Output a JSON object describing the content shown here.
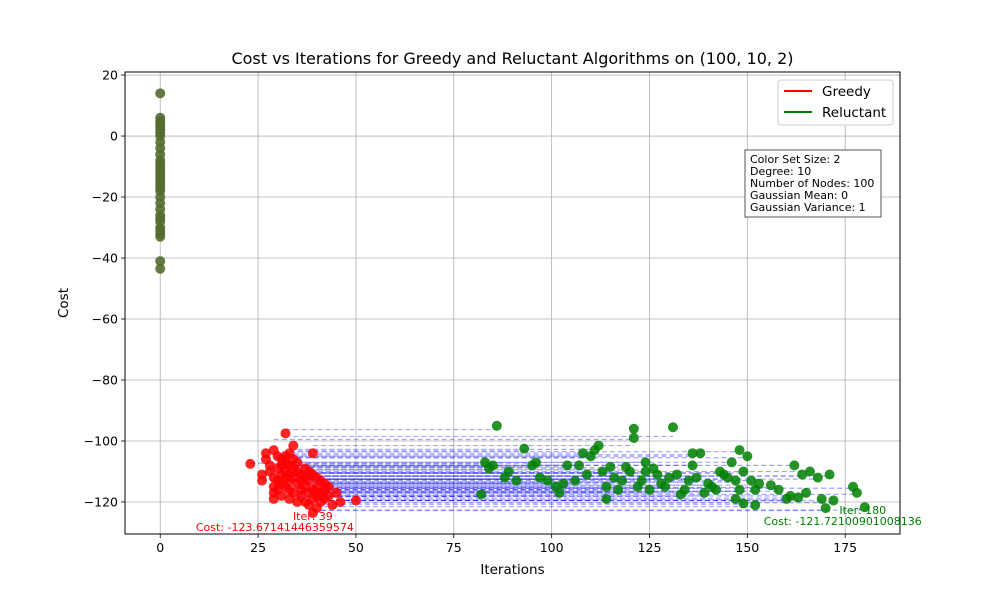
{
  "chart_data": {
    "type": "scatter",
    "title": "Cost vs Iterations for Greedy and Reluctant Algorithms on (100, 10, 2)",
    "xlabel": "Iterations",
    "ylabel": "Cost",
    "xlim": [
      -9,
      189
    ],
    "ylim": [
      -130.5,
      21
    ],
    "xticks": [
      0,
      25,
      50,
      75,
      100,
      125,
      150,
      175
    ],
    "yticks": [
      20,
      0,
      -20,
      -40,
      -60,
      -80,
      -100,
      -120
    ],
    "xtick_labels": [
      "0",
      "25",
      "50",
      "75",
      "100",
      "125",
      "150",
      "175"
    ],
    "ytick_labels": [
      "20",
      "0",
      "−20",
      "−40",
      "−60",
      "−80",
      "−100",
      "−120"
    ],
    "grid": true,
    "legend_position": "top-right",
    "legend": [
      {
        "name": "Greedy",
        "color": "#ff0000"
      },
      {
        "name": "Reluctant",
        "color": "#008000"
      }
    ],
    "colors": {
      "greedy": "#ff0000",
      "reluctant": "#008000",
      "initial": "#556b2f",
      "path": "#0000ff"
    },
    "info_box": [
      "Color Set Size: 2",
      "Degree: 10",
      "Number of Nodes: 100",
      "Gaussian Mean: 0",
      "Gaussian Variance: 1"
    ],
    "annotations": [
      {
        "line1": "Iter: 39",
        "line2": "Cost: -123.67141446359574",
        "x": 39,
        "y": -123.67,
        "color": "#ff0000"
      },
      {
        "line1": "Iter: 180",
        "line2": "Cost: -121.72100901008136",
        "x": 180,
        "y": -121.72,
        "color": "#008000"
      }
    ],
    "initial_points": {
      "x": 0,
      "y": [
        14,
        6,
        5,
        4,
        3,
        2,
        1,
        0,
        -2,
        -4,
        -6,
        -8,
        -9,
        -10,
        -11,
        -12,
        -13,
        -14,
        -15,
        -16,
        -17,
        -18,
        -20,
        -22,
        -24,
        -26,
        -27,
        -28,
        -30,
        -31,
        -32,
        -33,
        -41,
        -43.5
      ]
    },
    "greedy_points": [
      [
        23,
        -107.5
      ],
      [
        26,
        -111
      ],
      [
        26,
        -113
      ],
      [
        27,
        -104
      ],
      [
        27,
        -106
      ],
      [
        28,
        -108
      ],
      [
        28,
        -110
      ],
      [
        29,
        -103
      ],
      [
        29,
        -112
      ],
      [
        29,
        -115
      ],
      [
        29,
        -117
      ],
      [
        29,
        -119
      ],
      [
        30,
        -105
      ],
      [
        30,
        -109
      ],
      [
        30,
        -113
      ],
      [
        30,
        -116
      ],
      [
        31,
        -106
      ],
      [
        31,
        -108
      ],
      [
        31,
        -111
      ],
      [
        31,
        -114
      ],
      [
        31,
        -118
      ],
      [
        32,
        -97.5
      ],
      [
        32,
        -105
      ],
      [
        32,
        -107
      ],
      [
        32,
        -110
      ],
      [
        32,
        -112
      ],
      [
        32,
        -115
      ],
      [
        33,
        -104
      ],
      [
        33,
        -108
      ],
      [
        33,
        -111
      ],
      [
        33,
        -113
      ],
      [
        33,
        -116
      ],
      [
        33,
        -119
      ],
      [
        34,
        -101.5
      ],
      [
        34,
        -106
      ],
      [
        34,
        -109
      ],
      [
        34,
        -112
      ],
      [
        34,
        -117
      ],
      [
        35,
        -107
      ],
      [
        35,
        -110
      ],
      [
        35,
        -114
      ],
      [
        35,
        -120
      ],
      [
        36,
        -111
      ],
      [
        36,
        -113
      ],
      [
        36,
        -116
      ],
      [
        36,
        -118
      ],
      [
        37,
        -109
      ],
      [
        37,
        -112
      ],
      [
        37,
        -115
      ],
      [
        37,
        -120
      ],
      [
        38,
        -110
      ],
      [
        38,
        -113
      ],
      [
        38,
        -117
      ],
      [
        38,
        -121
      ],
      [
        39,
        -104
      ],
      [
        39,
        -111
      ],
      [
        39,
        -116
      ],
      [
        39,
        -119
      ],
      [
        39,
        -123.6
      ],
      [
        40,
        -112
      ],
      [
        40,
        -115
      ],
      [
        40,
        -118
      ],
      [
        40,
        -122
      ],
      [
        41,
        -113
      ],
      [
        41,
        -117
      ],
      [
        41,
        -120
      ],
      [
        42,
        -114
      ],
      [
        42,
        -116
      ],
      [
        42,
        -119
      ],
      [
        43,
        -115
      ],
      [
        43,
        -118
      ],
      [
        44,
        -121
      ],
      [
        45,
        -117
      ],
      [
        46,
        -120
      ],
      [
        50,
        -119.5
      ]
    ],
    "reluctant_points": [
      [
        82,
        -117.5
      ],
      [
        83,
        -107
      ],
      [
        84,
        -109
      ],
      [
        85,
        -108
      ],
      [
        86,
        -95
      ],
      [
        88,
        -112
      ],
      [
        89,
        -110
      ],
      [
        91,
        -113
      ],
      [
        93,
        -102.5
      ],
      [
        95,
        -108
      ],
      [
        96,
        -107
      ],
      [
        97,
        -112
      ],
      [
        99,
        -113
      ],
      [
        101,
        -115
      ],
      [
        102,
        -117
      ],
      [
        103,
        -114
      ],
      [
        104,
        -108
      ],
      [
        106,
        -113
      ],
      [
        107,
        -108
      ],
      [
        108,
        -104
      ],
      [
        109,
        -111
      ],
      [
        110,
        -105
      ],
      [
        111,
        -103
      ],
      [
        112,
        -101.5
      ],
      [
        113,
        -110
      ],
      [
        114,
        -115
      ],
      [
        114,
        -119
      ],
      [
        115,
        -108.5
      ],
      [
        116,
        -112
      ],
      [
        117,
        -116
      ],
      [
        118,
        -113
      ],
      [
        119,
        -108.5
      ],
      [
        120,
        -110
      ],
      [
        121,
        -99
      ],
      [
        121,
        -96
      ],
      [
        122,
        -115
      ],
      [
        123,
        -113
      ],
      [
        124,
        -107
      ],
      [
        124,
        -110
      ],
      [
        125,
        -116
      ],
      [
        126,
        -109
      ],
      [
        127,
        -111
      ],
      [
        128,
        -114
      ],
      [
        129,
        -115
      ],
      [
        130,
        -112
      ],
      [
        131,
        -95.5
      ],
      [
        132,
        -111
      ],
      [
        133,
        -117.5
      ],
      [
        134,
        -116
      ],
      [
        135,
        -113
      ],
      [
        136,
        -108
      ],
      [
        136,
        -104
      ],
      [
        137,
        -112
      ],
      [
        138,
        -104
      ],
      [
        139,
        -117
      ],
      [
        140,
        -114
      ],
      [
        141,
        -115
      ],
      [
        142,
        -116
      ],
      [
        143,
        -110
      ],
      [
        144,
        -111
      ],
      [
        145,
        -112
      ],
      [
        146,
        -107
      ],
      [
        147,
        -113
      ],
      [
        147,
        -119
      ],
      [
        148,
        -116
      ],
      [
        148,
        -103
      ],
      [
        149,
        -110
      ],
      [
        149,
        -120.5
      ],
      [
        150,
        -105
      ],
      [
        151,
        -113
      ],
      [
        152,
        -116
      ],
      [
        152,
        -121
      ],
      [
        153,
        -114
      ],
      [
        156,
        -114.5
      ],
      [
        158,
        -116
      ],
      [
        160,
        -119
      ],
      [
        161,
        -118
      ],
      [
        162,
        -108
      ],
      [
        163,
        -118.5
      ],
      [
        164,
        -111
      ],
      [
        165,
        -117
      ],
      [
        166,
        -110
      ],
      [
        168,
        -112
      ],
      [
        169,
        -119
      ],
      [
        170,
        -122
      ],
      [
        171,
        -111
      ],
      [
        172,
        -119.5
      ],
      [
        177,
        -115
      ],
      [
        178,
        -117
      ],
      [
        180,
        -121.7
      ]
    ]
  }
}
